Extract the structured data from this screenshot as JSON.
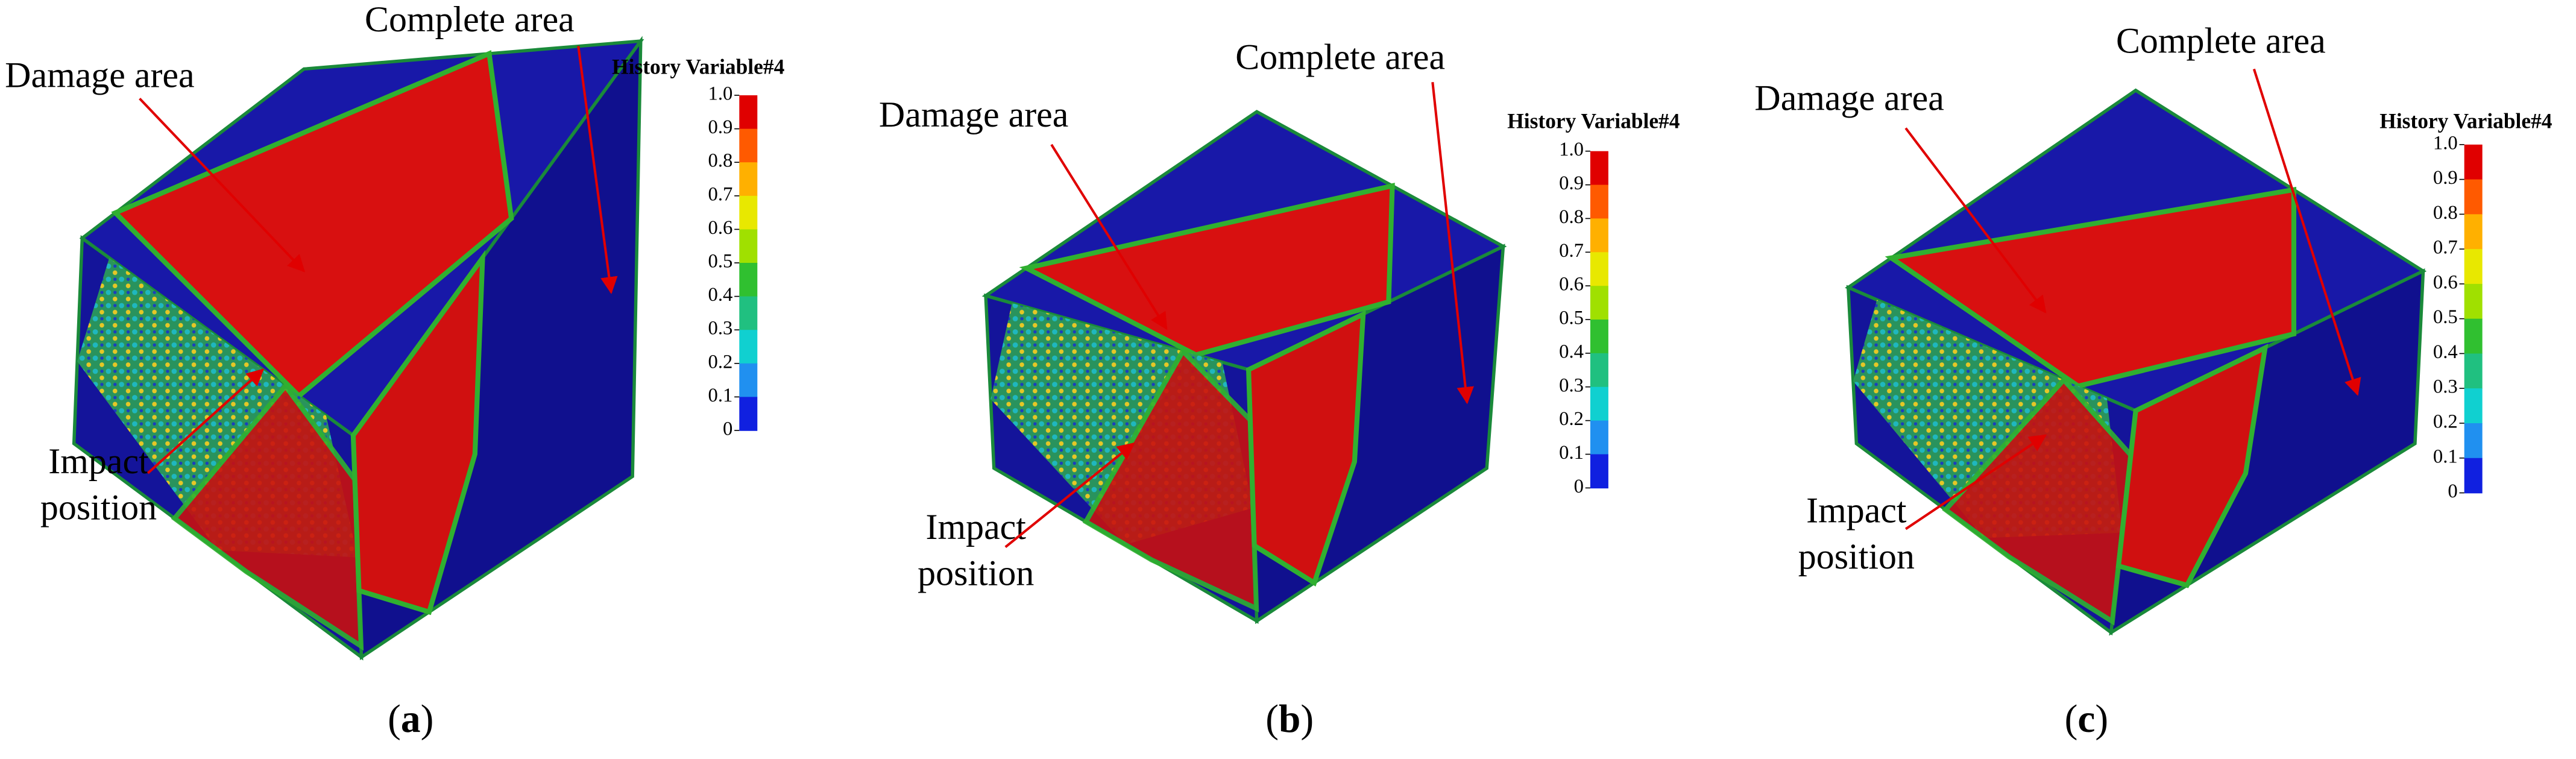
{
  "panels": [
    {
      "annotations": {
        "damage": "Damage area",
        "complete": "Complete area",
        "impact": [
          "Impact",
          "position"
        ]
      },
      "legend": {
        "title": "History Variable#4",
        "ticks": [
          "1.0",
          "0.9",
          "0.8",
          "0.7",
          "0.6",
          "0.5",
          "0.4",
          "0.3",
          "0.2",
          "0.1",
          "0"
        ]
      },
      "caption": [
        "(",
        "a",
        ")"
      ]
    },
    {
      "annotations": {
        "damage": "Damage area",
        "complete": "Complete area",
        "impact": [
          "Impact",
          "position"
        ]
      },
      "legend": {
        "title": "History Variable#4",
        "ticks": [
          "1.0",
          "0.9",
          "0.8",
          "0.7",
          "0.6",
          "0.5",
          "0.4",
          "0.3",
          "0.2",
          "0.1",
          "0"
        ]
      },
      "caption": [
        "(",
        "b",
        ")"
      ]
    },
    {
      "annotations": {
        "damage": "Damage area",
        "complete": "Complete area",
        "impact": [
          "Impact",
          "position"
        ]
      },
      "legend": {
        "title": "History Variable#4",
        "ticks": [
          "1.0",
          "0.9",
          "0.8",
          "0.7",
          "0.6",
          "0.5",
          "0.4",
          "0.3",
          "0.2",
          "0.1",
          "0"
        ]
      },
      "caption": [
        "(",
        "c",
        ")"
      ]
    }
  ]
}
